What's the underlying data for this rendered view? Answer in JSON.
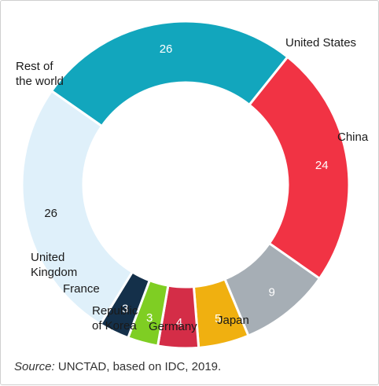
{
  "chart_data": {
    "type": "pie",
    "donut": true,
    "slices": [
      {
        "label": "United States",
        "value": 26,
        "color": "#12a6bd",
        "value_color": "#ffffff"
      },
      {
        "label": "China",
        "value": 24,
        "color": "#f13344",
        "value_color": "#ffffff"
      },
      {
        "label": "Japan",
        "value": 9,
        "color": "#a6aeb5",
        "value_color": "#ffffff"
      },
      {
        "label": "Germany",
        "value": 5,
        "color": "#f0b010",
        "value_color": "#ffffff"
      },
      {
        "label": "Republic of Korea",
        "value": 4,
        "color": "#d42d47",
        "value_color": "#ffffff"
      },
      {
        "label": "France",
        "value": 3,
        "color": "#7fce23",
        "value_color": "#ffffff"
      },
      {
        "label": "United Kingdom",
        "value": 3,
        "color": "#14304a",
        "value_color": "#ffffff"
      },
      {
        "label": "Rest of the world",
        "value": 26,
        "color": "#dff0fa",
        "value_color": "#1a1a1a"
      }
    ]
  },
  "source": {
    "prefix": "Source:",
    "text": " UNCTAD, based on IDC, 2019."
  }
}
